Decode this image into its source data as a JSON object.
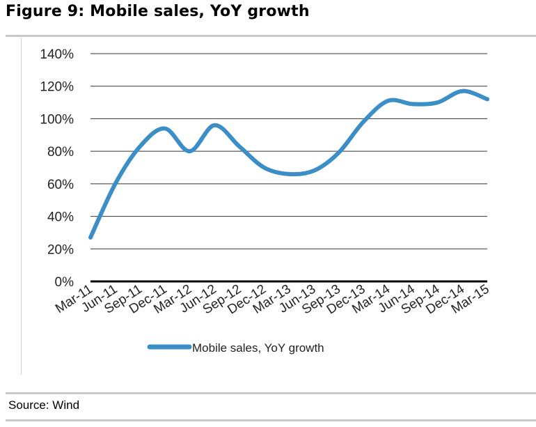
{
  "title": "Figure 9: Mobile sales, YoY growth",
  "source": "Source:  Wind",
  "chart_data": {
    "type": "line",
    "title": "Figure 9: Mobile sales, YoY growth",
    "xlabel": "",
    "ylabel": "",
    "ylim": [
      0,
      140
    ],
    "yticks": [
      "0%",
      "20%",
      "40%",
      "60%",
      "80%",
      "100%",
      "120%",
      "140%"
    ],
    "grid": true,
    "legend_position": "bottom",
    "categories": [
      "Mar-11",
      "Jun-11",
      "Sep-11",
      "Dec-11",
      "Mar-12",
      "Jun-12",
      "Sep-12",
      "Dec-12",
      "Mar-13",
      "Jun-13",
      "Sep-13",
      "Dec-13",
      "Mar-14",
      "Jun-14",
      "Sep-14",
      "Dec-14",
      "Mar-15"
    ],
    "series": [
      {
        "name": "Mobile sales, YoY growth",
        "color": "#3b8fc6",
        "values": [
          27,
          60,
          83,
          94,
          80,
          96,
          83,
          70,
          66,
          68,
          79,
          98,
          111,
          109,
          110,
          117,
          112
        ]
      }
    ]
  }
}
